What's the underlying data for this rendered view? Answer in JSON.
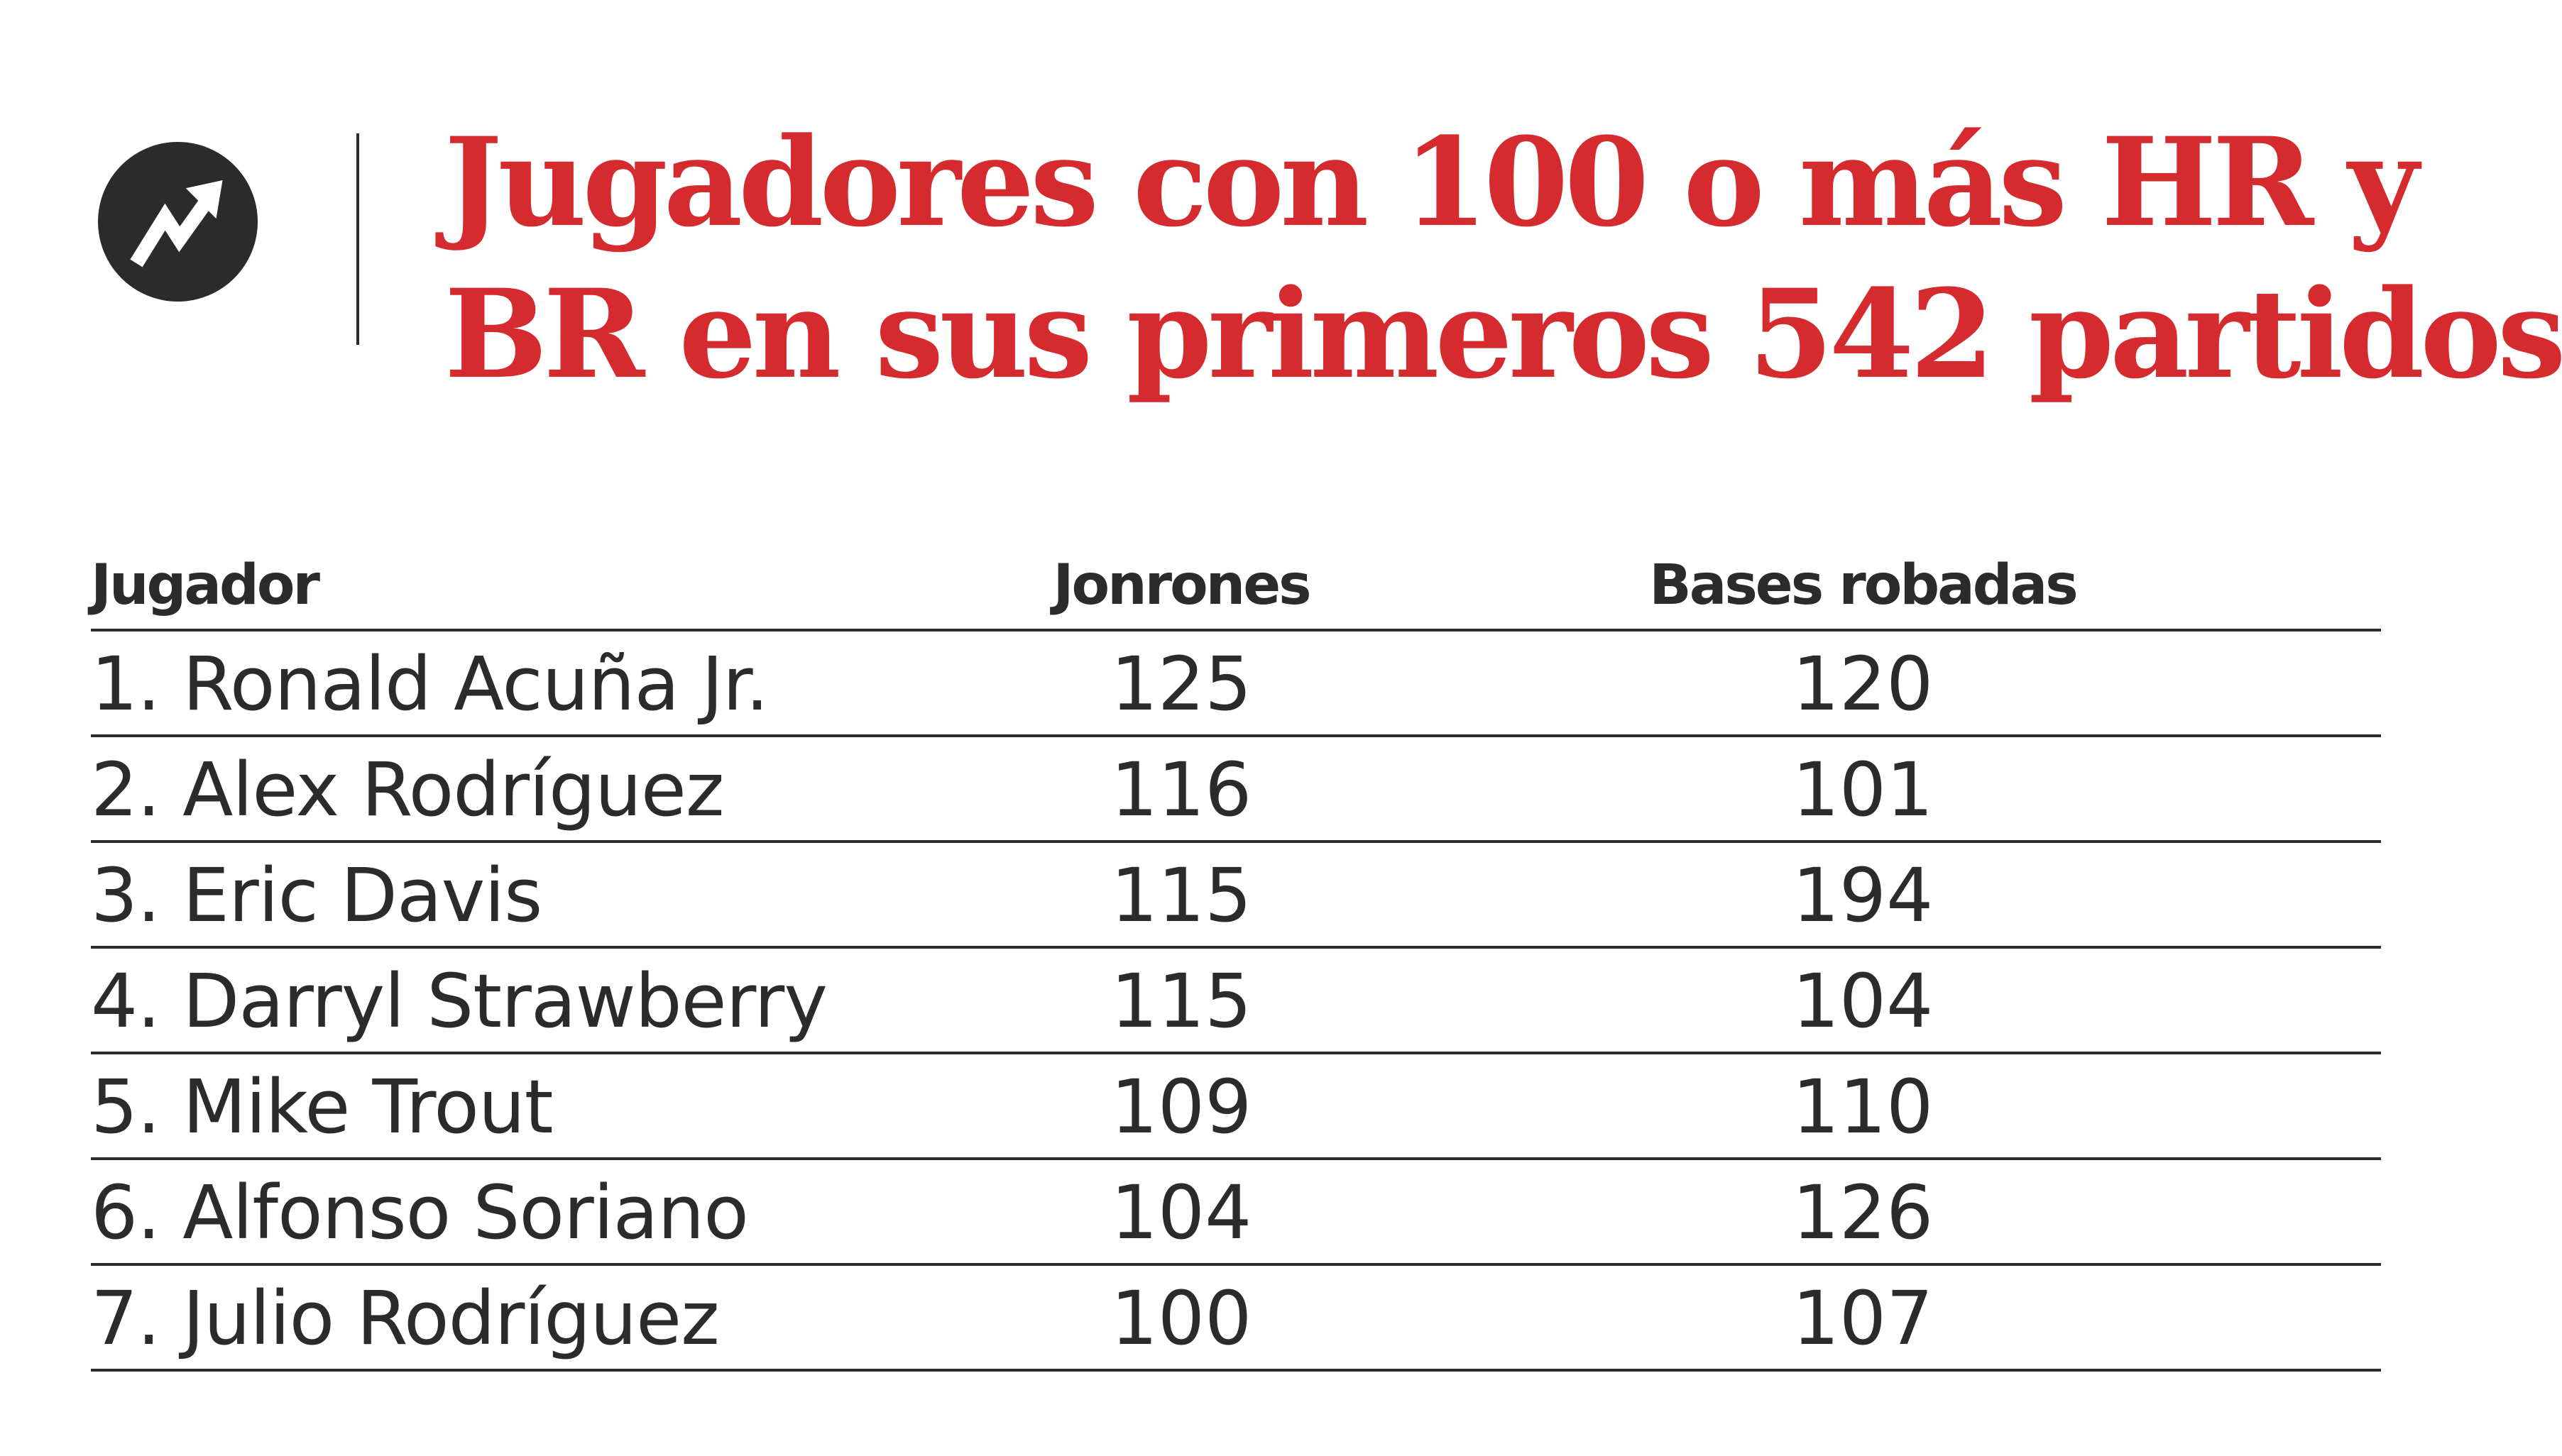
{
  "logo": {
    "icon": "trend-arrow-icon",
    "bg_color": "#2b2b2b",
    "fg_color": "#ffffff"
  },
  "title": {
    "line1": "Jugadores con 100 o más HR y",
    "line2": "BR en sus primeros 542 partidos",
    "color": "#d52b2e"
  },
  "chart_data": {
    "type": "table",
    "columns": [
      "Jugador",
      "Jonrones",
      "Bases robadas"
    ],
    "rows": [
      {
        "player": "1. Ronald Acuña Jr.",
        "hr": "125",
        "sb": "120"
      },
      {
        "player": "2. Alex Rodríguez",
        "hr": "116",
        "sb": "101"
      },
      {
        "player": "3. Eric Davis",
        "hr": "115",
        "sb": "194"
      },
      {
        "player": "4. Darryl Strawberry",
        "hr": "115",
        "sb": "104"
      },
      {
        "player": "5. Mike Trout",
        "hr": "109",
        "sb": "110"
      },
      {
        "player": "6. Alfonso Soriano",
        "hr": "104",
        "sb": "126"
      },
      {
        "player": "7. Julio Rodríguez",
        "hr": "100",
        "sb": "107"
      }
    ]
  }
}
